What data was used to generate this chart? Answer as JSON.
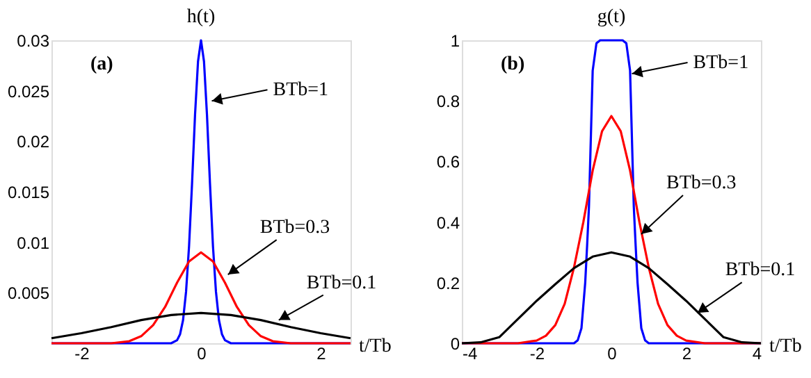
{
  "chart_data": [
    {
      "type": "line",
      "title": "h(t)",
      "xlabel": "t/Tb",
      "xlim": [
        -2.5,
        2.5
      ],
      "ylim": [
        0,
        0.03
      ],
      "xticks": [
        -2,
        0,
        2
      ],
      "yticks": [
        0.005,
        0.01,
        0.015,
        0.02,
        0.025,
        0.03
      ],
      "grid": false,
      "marker": "none",
      "line_style": "solid",
      "series": [
        {
          "color": "#0000ff",
          "x": [
            -2.5,
            -0.5,
            -0.4,
            -0.35,
            -0.3,
            -0.25,
            -0.2,
            -0.15,
            -0.1,
            -0.05,
            0,
            0.05,
            0.1,
            0.15,
            0.2,
            0.25,
            0.3,
            0.35,
            0.4,
            0.5,
            2.5
          ],
          "values": [
            0,
            0,
            0.0003,
            0.0009,
            0.0023,
            0.0051,
            0.0096,
            0.0158,
            0.0226,
            0.0279,
            0.03,
            0.0279,
            0.0226,
            0.0158,
            0.0096,
            0.0051,
            0.0023,
            0.0009,
            0.0003,
            0,
            0
          ]
        },
        {
          "color": "#ff0000",
          "x": [
            -2.5,
            -1.5,
            -1.2,
            -1.0,
            -0.8,
            -0.6,
            -0.4,
            -0.2,
            0,
            0.2,
            0.4,
            0.6,
            0.8,
            1.0,
            1.2,
            1.5,
            2.5
          ],
          "values": [
            0,
            0,
            0.0002,
            0.0007,
            0.0018,
            0.0036,
            0.006,
            0.0081,
            0.009,
            0.0081,
            0.006,
            0.0036,
            0.0018,
            0.0007,
            0.0002,
            0,
            0
          ]
        },
        {
          "color": "#000000",
          "x": [
            -2.5,
            -2,
            -1.5,
            -1,
            -0.5,
            0,
            0.5,
            1,
            1.5,
            2,
            2.5
          ],
          "values": [
            0.0005,
            0.001,
            0.0016,
            0.0023,
            0.0028,
            0.003,
            0.0028,
            0.0023,
            0.0016,
            0.001,
            0.0005
          ]
        }
      ],
      "annotations": [
        "(a)",
        {
          "text": "BTb=1",
          "x": 0.18,
          "y": 0.024
        },
        {
          "text": "BTb=0.3",
          "x": 0.45,
          "y": 0.0068
        },
        {
          "text": "BTb=0.1",
          "x": 1.3,
          "y": 0.0023
        }
      ]
    },
    {
      "type": "line",
      "title": "g(t)",
      "xlabel": "t/Tb",
      "xlim": [
        -4,
        4
      ],
      "ylim": [
        0,
        1
      ],
      "xticks": [
        -4,
        -2,
        0,
        2,
        4
      ],
      "yticks": [
        0,
        0.2,
        0.4,
        0.6,
        0.8,
        1
      ],
      "grid": false,
      "marker": "none",
      "line_style": "solid",
      "series": [
        {
          "color": "#0000ff",
          "x": [
            -4,
            -1.0,
            -0.9,
            -0.8,
            -0.7,
            -0.65,
            -0.6,
            -0.5,
            -0.4,
            -0.3,
            0,
            0.3,
            0.4,
            0.5,
            0.6,
            0.65,
            0.7,
            0.8,
            0.9,
            1.0,
            4
          ],
          "values": [
            0,
            0,
            0.01,
            0.05,
            0.2,
            0.32,
            0.45,
            0.9,
            0.99,
            1,
            1,
            1,
            0.99,
            0.9,
            0.45,
            0.32,
            0.2,
            0.05,
            0.01,
            0,
            0
          ]
        },
        {
          "color": "#ff0000",
          "x": [
            -4,
            -2.5,
            -2,
            -1.75,
            -1.5,
            -1.25,
            -1,
            -0.75,
            -0.5,
            -0.25,
            0,
            0.25,
            0.5,
            0.75,
            1,
            1.25,
            1.5,
            1.75,
            2,
            2.5,
            4
          ],
          "values": [
            0,
            0,
            0.009,
            0.025,
            0.06,
            0.13,
            0.25,
            0.4,
            0.57,
            0.7,
            0.75,
            0.7,
            0.57,
            0.4,
            0.25,
            0.13,
            0.06,
            0.025,
            0.009,
            0,
            0
          ]
        },
        {
          "color": "#000000",
          "x": [
            -4,
            -3.5,
            -3,
            -2.5,
            -2,
            -1.5,
            -1,
            -0.5,
            0,
            0.5,
            1,
            1.5,
            2,
            2.5,
            3,
            3.5,
            4
          ],
          "values": [
            0,
            0.003,
            0.02,
            0.08,
            0.14,
            0.195,
            0.248,
            0.286,
            0.3,
            0.286,
            0.248,
            0.195,
            0.14,
            0.08,
            0.02,
            0.003,
            0
          ]
        }
      ],
      "annotations": [
        "(b)",
        {
          "text": "BTb=1",
          "x": 0.55,
          "y": 0.89
        },
        {
          "text": "BTb=0.3",
          "x": 0.8,
          "y": 0.36
        },
        {
          "text": "BTb=0.1",
          "x": 2.3,
          "y": 0.1
        }
      ]
    }
  ]
}
